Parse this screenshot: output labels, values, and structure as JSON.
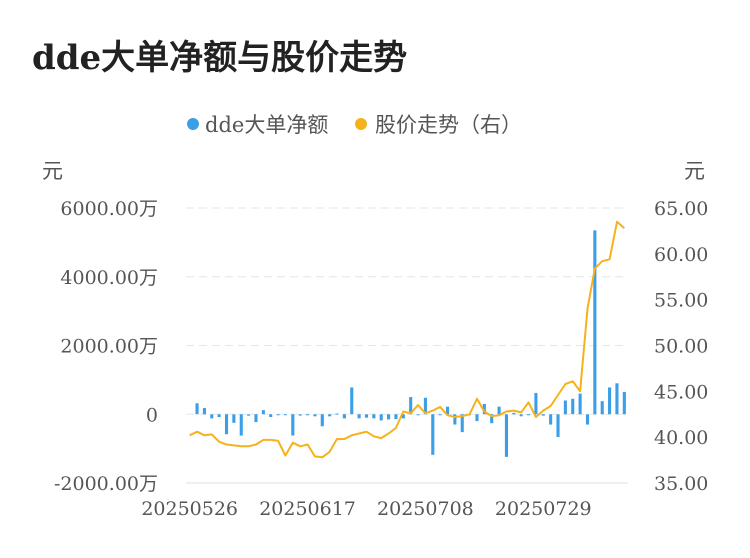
{
  "chart_data": {
    "type": "bar+line",
    "title": "dde大单净额与股价走势",
    "legend": [
      {
        "label": "dde大单净额",
        "color": "#3a9ee8"
      },
      {
        "label": "股价走势（右）",
        "color": "#f5b21d"
      }
    ],
    "legend_position": "top-center",
    "left_unit": "元",
    "right_unit": "元",
    "left_axis": {
      "ylim": [
        -2000,
        6000
      ],
      "ticks": [
        -2000,
        0,
        2000,
        4000,
        6000
      ],
      "tick_labels": [
        "-2000.00万",
        "0",
        "2000.00万",
        "4000.00万",
        "6000.00万"
      ]
    },
    "right_axis": {
      "ylim": [
        35,
        65
      ],
      "ticks": [
        35,
        40,
        45,
        50,
        55,
        60,
        65
      ],
      "tick_labels": [
        "35.00",
        "40.00",
        "45.00",
        "50.00",
        "55.00",
        "60.00",
        "65.00"
      ]
    },
    "grid": true,
    "x_tick_labels": [
      "20250526",
      "20250617",
      "20250708",
      "20250729"
    ],
    "x_tick_index": [
      0,
      16,
      32,
      48
    ],
    "series": [
      {
        "name": "dde大单净额",
        "kind": "bar",
        "axis": "left",
        "values": [
          0,
          320,
          180,
          -120,
          -80,
          -580,
          -250,
          -620,
          -40,
          -230,
          120,
          -80,
          -30,
          -10,
          -620,
          -40,
          -30,
          -60,
          -350,
          -60,
          20,
          -120,
          780,
          -120,
          -100,
          -120,
          -180,
          -150,
          -140,
          -120,
          500,
          -30,
          480,
          -1180,
          -20,
          220,
          -300,
          -520,
          -20,
          -200,
          300,
          -260,
          220,
          -1240,
          40,
          -60,
          -30,
          620,
          -40,
          -300,
          -660,
          400,
          450,
          600,
          -300,
          5350,
          380,
          780,
          900,
          650
        ]
      },
      {
        "name": "股价走势（右）",
        "kind": "line",
        "axis": "right",
        "values": [
          40.2,
          40.6,
          40.2,
          40.3,
          39.5,
          39.2,
          39.1,
          39.0,
          39.0,
          39.2,
          39.7,
          39.7,
          39.6,
          38.0,
          39.4,
          39.0,
          39.2,
          37.9,
          37.8,
          38.4,
          39.8,
          39.8,
          40.2,
          40.4,
          40.6,
          40.1,
          39.9,
          40.4,
          41.0,
          42.8,
          42.6,
          43.5,
          42.6,
          42.9,
          43.3,
          42.4,
          42.2,
          42.3,
          42.5,
          44.2,
          42.8,
          42.3,
          42.4,
          42.8,
          42.9,
          42.7,
          43.8,
          42.2,
          42.9,
          43.4,
          44.6,
          45.8,
          46.1,
          45.0,
          54.0,
          58.4,
          59.2,
          59.4,
          63.5,
          62.8
        ]
      }
    ]
  }
}
